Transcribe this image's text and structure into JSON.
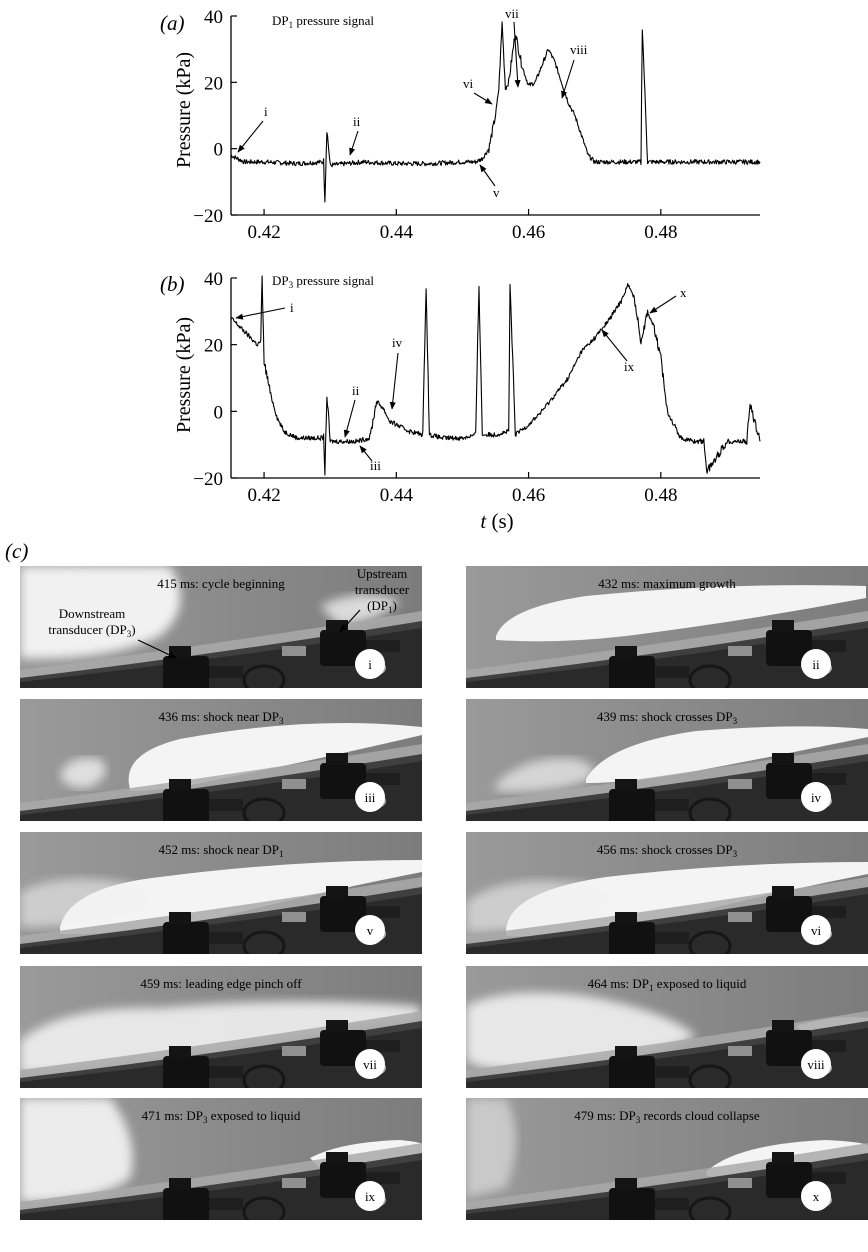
{
  "panels": {
    "a": {
      "label": "(a)",
      "title_main": "DP",
      "title_sub": "1",
      "title_rest": " pressure signal",
      "ylabel": "Pressure (kPa)",
      "yticks": [
        "40",
        "20",
        "0",
        "−20"
      ],
      "xticks": [
        "0.42",
        "0.44",
        "0.46",
        "0.48"
      ]
    },
    "b": {
      "label": "(b)",
      "title_main": "DP",
      "title_sub": "3",
      "title_rest": " pressure signal",
      "ylabel": "Pressure (kPa)",
      "yticks": [
        "40",
        "20",
        "0",
        "−20"
      ],
      "xticks": [
        "0.42",
        "0.44",
        "0.46",
        "0.48"
      ],
      "xlabel_t": "t",
      "xlabel_unit": " (s)"
    },
    "c": {
      "label": "(c)"
    }
  },
  "chart_data": [
    {
      "type": "line",
      "panel": "a",
      "xlabel": "t (s)",
      "ylabel": "Pressure (kPa)",
      "xlim": [
        0.415,
        0.495
      ],
      "ylim": [
        -20,
        40
      ],
      "series": [
        {
          "x": [
            0.415,
            0.416,
            0.417,
            0.418,
            0.42,
            0.425,
            0.429,
            0.4292,
            0.4295,
            0.43,
            0.435,
            0.44,
            0.445,
            0.45,
            0.452,
            0.453,
            0.454,
            0.455,
            0.4555,
            0.456,
            0.4565,
            0.457,
            0.458,
            0.459,
            0.46,
            0.461,
            0.462,
            0.463,
            0.464,
            0.465,
            0.466,
            0.467,
            0.468,
            0.469,
            0.47,
            0.472,
            0.475,
            0.477,
            0.4772,
            0.478,
            0.48,
            0.485,
            0.49,
            0.495
          ],
          "y": [
            -2,
            -3,
            -4,
            -4,
            -4,
            -4.5,
            -4,
            -15,
            6,
            -5,
            -4,
            -4.5,
            -4.5,
            -4,
            -4,
            -3,
            0,
            10,
            18,
            38,
            18,
            20,
            35,
            25,
            19,
            20,
            25,
            30,
            26,
            20,
            14,
            10,
            4,
            -2,
            -4,
            -4,
            -4,
            -4,
            37,
            -4,
            -4,
            -4,
            -4,
            -4
          ]
        }
      ],
      "annotations": [
        "i",
        "ii",
        "v",
        "vi",
        "vii",
        "viii"
      ]
    },
    {
      "type": "line",
      "panel": "b",
      "xlabel": "t (s)",
      "ylabel": "Pressure (kPa)",
      "xlim": [
        0.415,
        0.495
      ],
      "ylim": [
        -20,
        40
      ],
      "series": [
        {
          "x": [
            0.415,
            0.416,
            0.417,
            0.418,
            0.419,
            0.4195,
            0.4197,
            0.42,
            0.421,
            0.422,
            0.423,
            0.424,
            0.425,
            0.427,
            0.429,
            0.4292,
            0.4295,
            0.43,
            0.432,
            0.434,
            0.436,
            0.437,
            0.438,
            0.439,
            0.44,
            0.442,
            0.444,
            0.4445,
            0.445,
            0.447,
            0.45,
            0.452,
            0.4525,
            0.453,
            0.455,
            0.457,
            0.4572,
            0.458,
            0.46,
            0.462,
            0.464,
            0.466,
            0.468,
            0.47,
            0.472,
            0.474,
            0.475,
            0.476,
            0.477,
            0.478,
            0.479,
            0.48,
            0.481,
            0.483,
            0.485,
            0.4865,
            0.487,
            0.49,
            0.493,
            0.4935,
            0.495
          ],
          "y": [
            28,
            26,
            24,
            22,
            20,
            21,
            40,
            15,
            5,
            -2,
            -6,
            -7,
            -8,
            -8,
            -8,
            -18,
            5,
            -9,
            -9,
            -9,
            -8,
            3,
            1,
            -3,
            -4,
            -6,
            -7,
            38,
            -7,
            -8,
            -8,
            -7,
            38,
            -7,
            -7,
            -6,
            38,
            -7,
            -4,
            0,
            5,
            10,
            18,
            22,
            27,
            33,
            38,
            34,
            21,
            30,
            25,
            16,
            0,
            -8,
            -9,
            -9,
            -18,
            -9,
            -9,
            2,
            -9
          ]
        }
      ],
      "annotations": [
        "i",
        "ii",
        "iii",
        "iv",
        "ix",
        "x"
      ]
    }
  ],
  "frames": [
    {
      "caption": "415 ms: cycle beginning",
      "cap_rest": "",
      "roman": "i",
      "extra": {
        "down_line1": "Downstream",
        "down_main": "transducer (DP",
        "down_sub": "3",
        "down_end": ")",
        "up_line1": "Upstream",
        "up_line2": "transducer",
        "up_main": "(DP",
        "up_sub": "1",
        "up_end": ")"
      }
    },
    {
      "caption": "432 ms: maximum growth",
      "cap_rest": "",
      "roman": "ii"
    },
    {
      "caption": "436 ms: shock near DP",
      "sub": "3",
      "cap_rest": "",
      "roman": "iii"
    },
    {
      "caption": "439 ms: shock crosses DP",
      "sub": "3",
      "cap_rest": "",
      "roman": "iv"
    },
    {
      "caption": "452 ms: shock near DP",
      "sub": "1",
      "cap_rest": "",
      "roman": "v"
    },
    {
      "caption": "456 ms: shock crosses DP",
      "sub": "3",
      "cap_rest": "",
      "roman": "vi"
    },
    {
      "caption": "459 ms: leading edge pinch off",
      "cap_rest": "",
      "roman": "vii"
    },
    {
      "caption": "464 ms: DP",
      "sub": "1",
      "cap_rest": " exposed to liquid",
      "roman": "viii"
    },
    {
      "caption": "471 ms: DP",
      "sub": "3",
      "cap_rest": " exposed to liquid",
      "roman": "ix"
    },
    {
      "caption": "479 ms: DP",
      "sub": "3",
      "cap_rest": " records cloud collapse",
      "roman": "x"
    }
  ]
}
